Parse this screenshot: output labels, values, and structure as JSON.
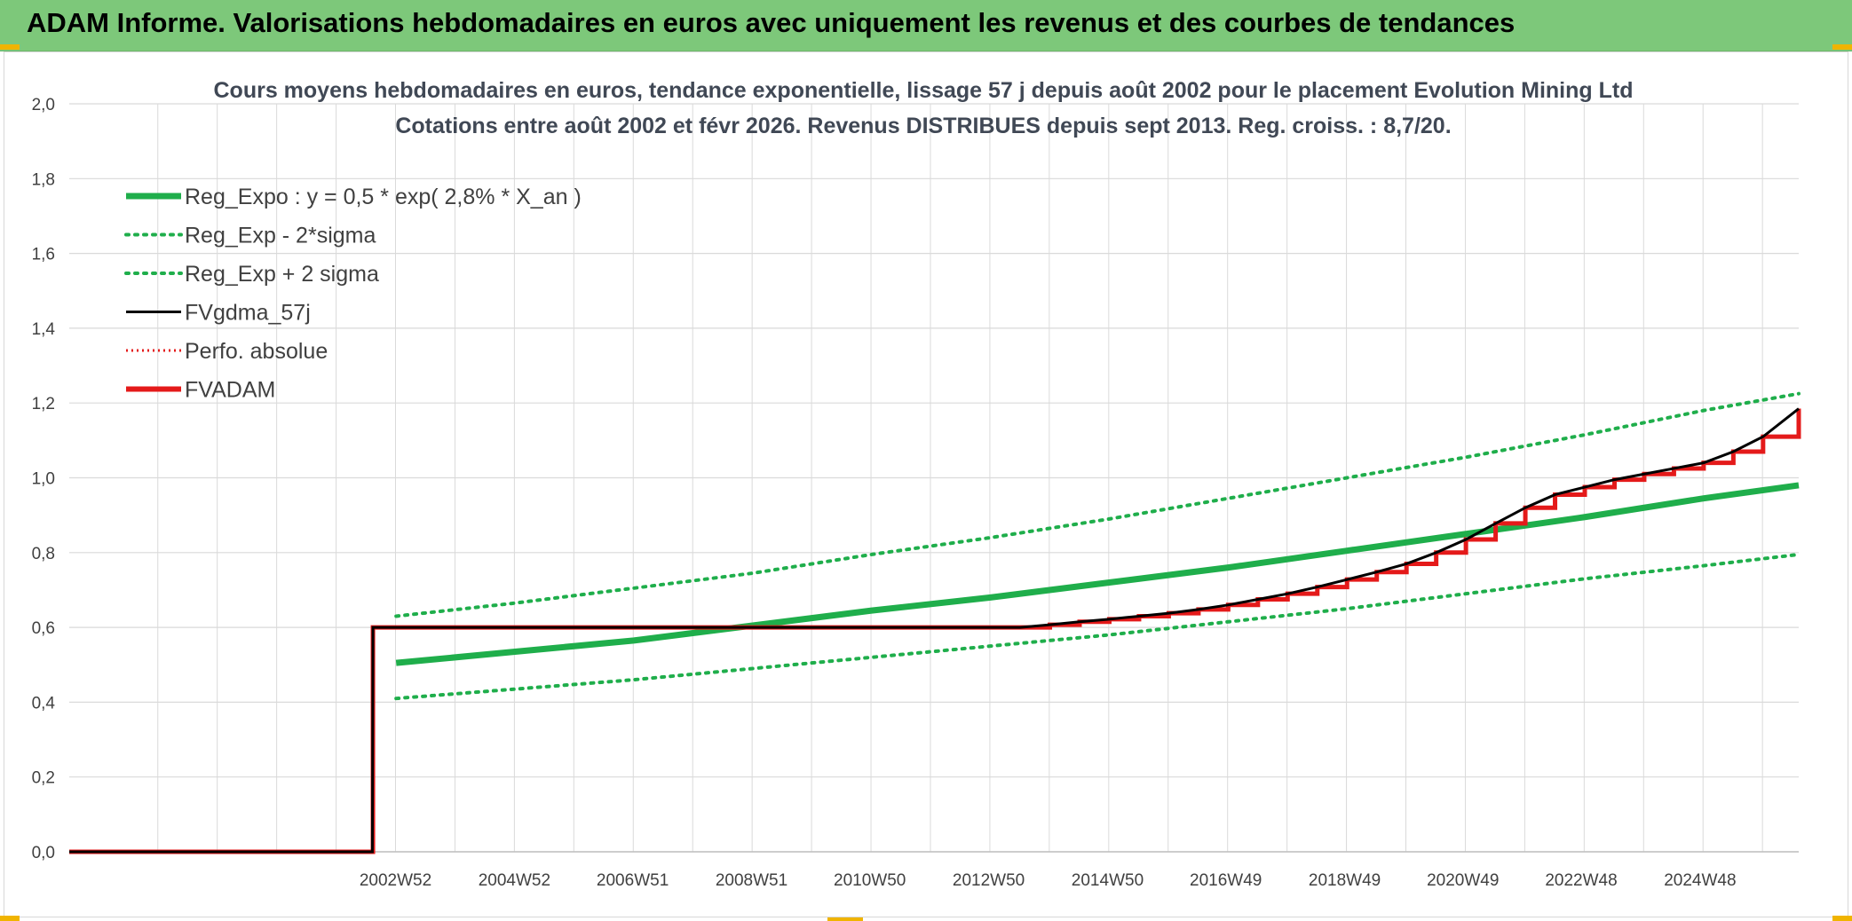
{
  "header": {
    "title": "ADAM Informe. Valorisations hebdomadaires en euros avec uniquement les revenus et des courbes de tendances"
  },
  "chart_data": {
    "type": "line",
    "title": "Cours moyens hebdomadaires en euros, tendance exponentielle, lissage 57 j depuis août 2002 pour le placement Evolution Mining Ltd",
    "subtitle": "Cotations entre août 2002 et févr 2026. Revenus DISTRIBUES depuis sept 2013. Reg. croiss. : 8,7/20.",
    "xlabel": "",
    "ylabel": "",
    "ylim": [
      0,
      2.0
    ],
    "xlim": [
      1997.5,
      2026.6
    ],
    "y_ticks": [
      "0,0",
      "0,2",
      "0,4",
      "0,6",
      "0,8",
      "1,0",
      "1,2",
      "1,4",
      "1,6",
      "1,8",
      "2,0"
    ],
    "x_ticks": [
      {
        "label": "2002W52",
        "x": 2002.99
      },
      {
        "label": "2004W52",
        "x": 2004.99
      },
      {
        "label": "2006W51",
        "x": 2006.98
      },
      {
        "label": "2008W51",
        "x": 2008.98
      },
      {
        "label": "2010W50",
        "x": 2010.97
      },
      {
        "label": "2012W50",
        "x": 2012.97
      },
      {
        "label": "2014W50",
        "x": 2014.97
      },
      {
        "label": "2016W49",
        "x": 2016.96
      },
      {
        "label": "2018W49",
        "x": 2018.96
      },
      {
        "label": "2020W49",
        "x": 2020.95
      },
      {
        "label": "2022W48",
        "x": 2022.94
      },
      {
        "label": "2024W48",
        "x": 2024.94
      }
    ],
    "grid": true,
    "legend_position": "top-left",
    "colors": {
      "green": "#1fae4b",
      "black": "#000000",
      "red": "#e41a1a",
      "grid": "#dadada"
    },
    "series": [
      {
        "name": "Reg_Expo : y = 0,5 * exp( 2,8% *  X_an )",
        "style": "solid-thick-green",
        "x": [
          2003.0,
          2005.0,
          2007.0,
          2009.0,
          2011.0,
          2013.0,
          2015.0,
          2017.0,
          2019.0,
          2021.0,
          2023.0,
          2025.0,
          2026.6
        ],
        "y": [
          0.505,
          0.535,
          0.565,
          0.605,
          0.645,
          0.68,
          0.72,
          0.76,
          0.805,
          0.85,
          0.895,
          0.945,
          0.98
        ]
      },
      {
        "name": "Reg_Exp - 2*sigma",
        "style": "dotted-green",
        "x": [
          2003.0,
          2005.0,
          2007.0,
          2009.0,
          2011.0,
          2013.0,
          2015.0,
          2017.0,
          2019.0,
          2021.0,
          2023.0,
          2025.0,
          2026.6
        ],
        "y": [
          0.41,
          0.435,
          0.46,
          0.49,
          0.52,
          0.55,
          0.58,
          0.615,
          0.65,
          0.69,
          0.73,
          0.765,
          0.795
        ]
      },
      {
        "name": "Reg_Exp + 2 sigma",
        "style": "dotted-green",
        "x": [
          2003.0,
          2005.0,
          2007.0,
          2009.0,
          2011.0,
          2013.0,
          2015.0,
          2017.0,
          2019.0,
          2021.0,
          2023.0,
          2025.0,
          2026.6
        ],
        "y": [
          0.63,
          0.665,
          0.705,
          0.745,
          0.795,
          0.84,
          0.89,
          0.945,
          1.0,
          1.055,
          1.115,
          1.18,
          1.225
        ]
      },
      {
        "name": "FVgdma_57j",
        "style": "solid-black",
        "x": [
          1997.5,
          2002.6,
          2002.61,
          2013.5,
          2014.0,
          2014.5,
          2015.0,
          2015.5,
          2016.0,
          2016.5,
          2017.0,
          2017.5,
          2018.0,
          2018.5,
          2019.0,
          2019.5,
          2020.0,
          2020.5,
          2021.0,
          2021.5,
          2022.0,
          2022.5,
          2023.0,
          2023.5,
          2024.0,
          2024.5,
          2025.0,
          2025.5,
          2026.0,
          2026.6
        ],
        "y": [
          0.0,
          0.0,
          0.6,
          0.6,
          0.607,
          0.615,
          0.622,
          0.63,
          0.638,
          0.648,
          0.66,
          0.675,
          0.69,
          0.708,
          0.728,
          0.748,
          0.77,
          0.8,
          0.835,
          0.878,
          0.92,
          0.955,
          0.975,
          0.995,
          1.01,
          1.025,
          1.04,
          1.07,
          1.11,
          1.185
        ]
      },
      {
        "name": "Perfo. absolue",
        "style": "dotted-red",
        "x": [],
        "y": []
      },
      {
        "name": "FVADAM",
        "style": "step-thick-red",
        "x": [
          1997.5,
          2002.6,
          2002.61,
          2013.5,
          2014.0,
          2014.5,
          2015.0,
          2015.5,
          2016.0,
          2016.5,
          2017.0,
          2017.5,
          2018.0,
          2018.5,
          2019.0,
          2019.5,
          2020.0,
          2020.5,
          2021.0,
          2021.5,
          2022.0,
          2022.5,
          2023.0,
          2023.5,
          2024.0,
          2024.5,
          2025.0,
          2025.5,
          2026.0,
          2026.6
        ],
        "y": [
          0.0,
          0.0,
          0.6,
          0.6,
          0.607,
          0.615,
          0.622,
          0.63,
          0.638,
          0.648,
          0.66,
          0.675,
          0.69,
          0.708,
          0.728,
          0.748,
          0.77,
          0.8,
          0.835,
          0.878,
          0.92,
          0.955,
          0.975,
          0.995,
          1.01,
          1.025,
          1.04,
          1.07,
          1.11,
          1.185
        ]
      }
    ]
  }
}
